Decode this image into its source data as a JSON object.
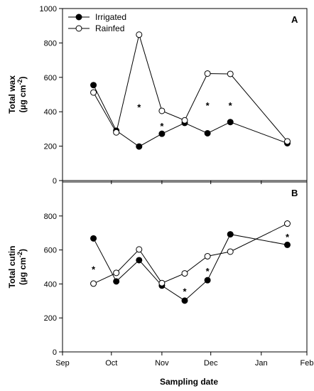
{
  "chart_data": [
    {
      "type": "line",
      "panel_label": "A",
      "ylabel_line1": "Total wax",
      "ylabel_line2_main": "(µg cm",
      "ylabel_line2_sup": "-2",
      "ylabel_line2_end": ")",
      "ylim": [
        0,
        1000
      ],
      "yticks": [
        0,
        200,
        400,
        600,
        800,
        1000
      ],
      "xlim": [
        0,
        150
      ],
      "grid": false,
      "legend_placement": "top-left",
      "series": [
        {
          "name": "Irrigated",
          "marker": "filled-circle",
          "color": "#000000",
          "x": [
            19,
            33,
            47,
            61,
            75,
            89,
            103,
            138
          ],
          "y": [
            555,
            290,
            198,
            272,
            335,
            275,
            340,
            217
          ]
        },
        {
          "name": "Rainfed",
          "marker": "open-circle",
          "color": "#000000",
          "x": [
            19,
            33,
            47,
            61,
            75,
            89,
            103,
            138
          ],
          "y": [
            512,
            280,
            848,
            405,
            350,
            622,
            620,
            228
          ]
        }
      ],
      "annotations": [
        {
          "text": "*",
          "x": 47,
          "y": 440
        },
        {
          "text": "*",
          "x": 61,
          "y": 330
        },
        {
          "text": "*",
          "x": 89,
          "y": 450
        },
        {
          "text": "*",
          "x": 103,
          "y": 450
        }
      ]
    },
    {
      "type": "line",
      "panel_label": "B",
      "ylabel_line1": "Total cutin",
      "ylabel_line2_main": "(µg cm",
      "ylabel_line2_sup": "-2",
      "ylabel_line2_end": ")",
      "xlabel": "Sampling date",
      "ylim": [
        0,
        1000
      ],
      "yticks": [
        0,
        200,
        400,
        600,
        800
      ],
      "xlim": [
        0,
        150
      ],
      "xticks": [
        {
          "label": "Sep",
          "x": 0
        },
        {
          "label": "Oct",
          "x": 30
        },
        {
          "label": "Nov",
          "x": 61
        },
        {
          "label": "Dec",
          "x": 91
        },
        {
          "label": "Jan",
          "x": 122
        },
        {
          "label": "Feb",
          "x": 153
        }
      ],
      "grid": false,
      "series": [
        {
          "name": "Irrigated",
          "marker": "filled-circle",
          "color": "#000000",
          "x": [
            19,
            33,
            47,
            61,
            75,
            89,
            103,
            138
          ],
          "y": [
            668,
            415,
            540,
            390,
            302,
            422,
            692,
            630
          ]
        },
        {
          "name": "Rainfed",
          "marker": "open-circle",
          "color": "#000000",
          "x": [
            19,
            33,
            47,
            61,
            75,
            89,
            103,
            138
          ],
          "y": [
            402,
            465,
            603,
            405,
            462,
            563,
            590,
            755
          ]
        }
      ],
      "annotations": [
        {
          "text": "*",
          "x": 19,
          "y": 500
        },
        {
          "text": "*",
          "x": 75,
          "y": 370
        },
        {
          "text": "*",
          "x": 89,
          "y": 490
        },
        {
          "text": "*",
          "x": 138,
          "y": 690
        }
      ]
    }
  ]
}
